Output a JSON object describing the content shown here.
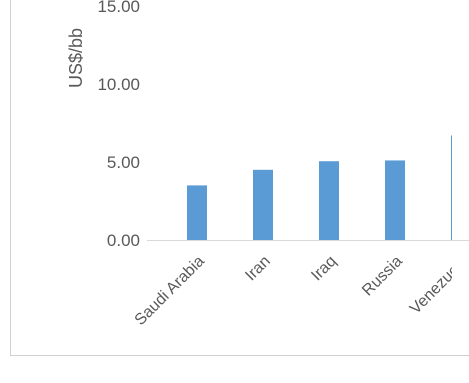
{
  "chart_data": {
    "type": "bar",
    "categories": [
      "Saudi Arabia",
      "Iran",
      "Iraq",
      "Russia",
      "Venezuela"
    ],
    "values": [
      3.5,
      4.5,
      5.05,
      5.1,
      6.7
    ],
    "ylabel": "US$/bb",
    "yticks": [
      "0.00",
      "5.00",
      "10.00",
      "15.00"
    ],
    "ylim": [
      0,
      15
    ],
    "bar_color": "#5b9bd5",
    "axis_color": "#d9d9d9",
    "grid": false
  }
}
